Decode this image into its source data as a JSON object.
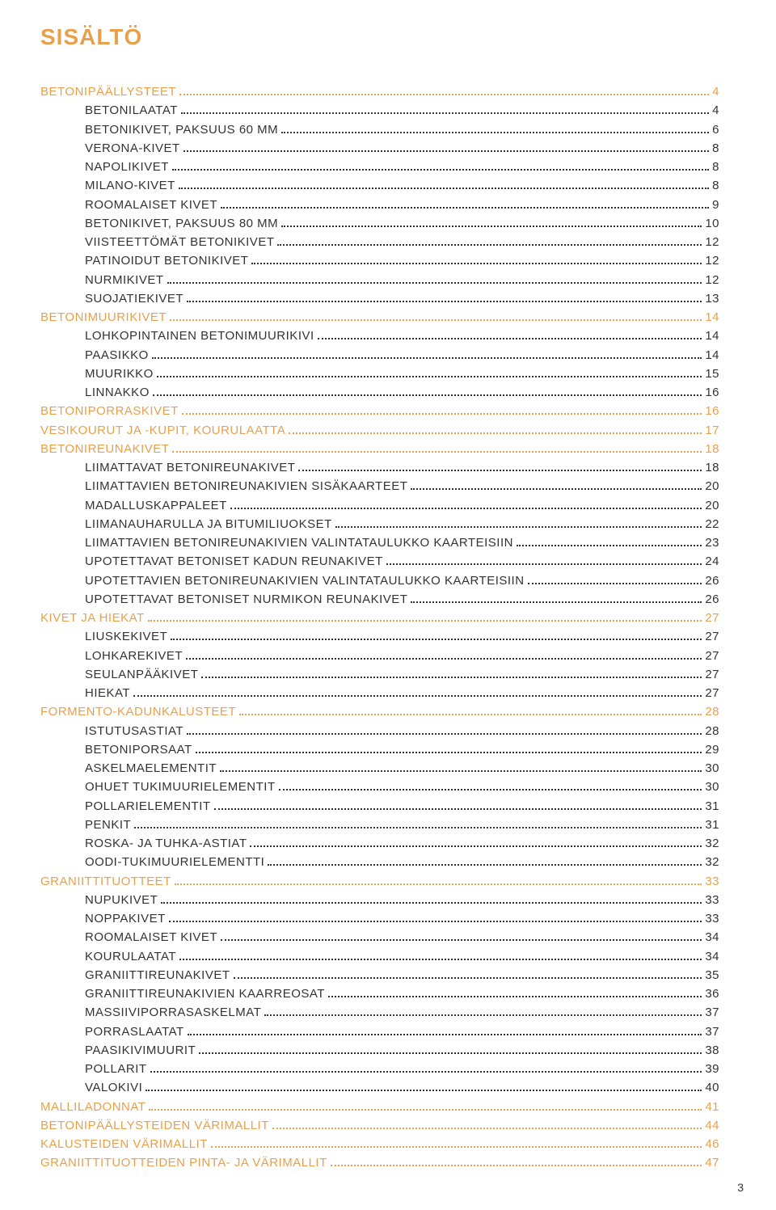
{
  "title": "SISÄLTÖ",
  "title_color": "#e8a04c",
  "colors": {
    "section": "#e8a04c",
    "item": "#333333"
  },
  "page_number": "3",
  "toc": [
    {
      "label": "BETONIPÄÄLLYSTEET",
      "page": "4",
      "type": "section",
      "indent": false
    },
    {
      "label": "BETONILAATAT",
      "page": "4",
      "type": "item",
      "indent": true
    },
    {
      "label": "BETONIKIVET, PAKSUUS 60 MM",
      "page": "6",
      "type": "item",
      "indent": true
    },
    {
      "label": "VERONA-KIVET",
      "page": "8",
      "type": "item",
      "indent": true
    },
    {
      "label": "NAPOLIKIVET",
      "page": "8",
      "type": "item",
      "indent": true
    },
    {
      "label": "MILANO-KIVET",
      "page": "8",
      "type": "item",
      "indent": true
    },
    {
      "label": "ROOMALAISET KIVET",
      "page": "9",
      "type": "item",
      "indent": true
    },
    {
      "label": "BETONIKIVET, PAKSUUS 80 MM",
      "page": "10",
      "type": "item",
      "indent": true
    },
    {
      "label": "VIISTEETTÖMÄT BETONIKIVET",
      "page": "12",
      "type": "item",
      "indent": true
    },
    {
      "label": "PATINOIDUT BETONIKIVET",
      "page": "12",
      "type": "item",
      "indent": true
    },
    {
      "label": "NURMIKIVET",
      "page": "12",
      "type": "item",
      "indent": true
    },
    {
      "label": "SUOJATIEKIVET",
      "page": "13",
      "type": "item",
      "indent": true
    },
    {
      "label": "BETONIMUURIKIVET",
      "page": "14",
      "type": "section",
      "indent": false
    },
    {
      "label": "LOHKOPINTAINEN BETONIMUURIKIVI",
      "page": "14",
      "type": "item",
      "indent": true
    },
    {
      "label": "PAASIKKO",
      "page": "14",
      "type": "item",
      "indent": true
    },
    {
      "label": "MUURIKKO",
      "page": "15",
      "type": "item",
      "indent": true
    },
    {
      "label": "LINNAKKO",
      "page": "16",
      "type": "item",
      "indent": true
    },
    {
      "label": "BETONIPORRASKIVET",
      "page": "16",
      "type": "section",
      "indent": false
    },
    {
      "label": "VESIKOURUT JA -KUPIT, KOURULAATTA",
      "page": "17",
      "type": "section",
      "indent": false
    },
    {
      "label": "BETONIREUNAKIVET",
      "page": "18",
      "type": "section",
      "indent": false
    },
    {
      "label": "LIIMATTAVAT BETONIREUNAKIVET",
      "page": "18",
      "type": "item",
      "indent": true
    },
    {
      "label": "LIIMATTAVIEN BETONIREUNAKIVIEN SISÄKAARTEET",
      "page": "20",
      "type": "item",
      "indent": true
    },
    {
      "label": "MADALLUSKAPPALEET",
      "page": "20",
      "type": "item",
      "indent": true
    },
    {
      "label": "LIIMANAUHARULLA JA BITUMILIUOKSET",
      "page": "22",
      "type": "item",
      "indent": true
    },
    {
      "label": "LIIMATTAVIEN BETONIREUNAKIVIEN VALINTATAULUKKO KAARTEISIIN",
      "page": "23",
      "type": "item",
      "indent": true
    },
    {
      "label": "UPOTETTAVAT BETONISET KADUN REUNAKIVET",
      "page": "24",
      "type": "item",
      "indent": true
    },
    {
      "label": "UPOTETTAVIEN BETONIREUNAKIVIEN VALINTATAULUKKO KAARTEISIIN",
      "page": "26",
      "type": "item",
      "indent": true
    },
    {
      "label": "UPOTETTAVAT BETONISET NURMIKON REUNAKIVET",
      "page": "26",
      "type": "item",
      "indent": true
    },
    {
      "label": "KIVET JA HIEKAT",
      "page": "27",
      "type": "section",
      "indent": false
    },
    {
      "label": "LIUSKEKIVET",
      "page": "27",
      "type": "item",
      "indent": true
    },
    {
      "label": "LOHKAREKIVET",
      "page": "27",
      "type": "item",
      "indent": true
    },
    {
      "label": "SEULANPÄÄKIVET",
      "page": "27",
      "type": "item",
      "indent": true
    },
    {
      "label": "HIEKAT",
      "page": "27",
      "type": "item",
      "indent": true
    },
    {
      "label": "FORMENTO-KADUNKALUSTEET",
      "page": "28",
      "type": "section",
      "indent": false
    },
    {
      "label": "ISTUTUSASTIAT",
      "page": "28",
      "type": "item",
      "indent": true
    },
    {
      "label": "BETONIPORSAAT",
      "page": "29",
      "type": "item",
      "indent": true
    },
    {
      "label": "ASKELMAELEMENTIT",
      "page": "30",
      "type": "item",
      "indent": true
    },
    {
      "label": "OHUET TUKIMUURIELEMENTIT",
      "page": "30",
      "type": "item",
      "indent": true
    },
    {
      "label": "POLLARIELEMENTIT",
      "page": "31",
      "type": "item",
      "indent": true
    },
    {
      "label": "PENKIT",
      "page": "31",
      "type": "item",
      "indent": true
    },
    {
      "label": "ROSKA- JA TUHKA-ASTIAT",
      "page": "32",
      "type": "item",
      "indent": true
    },
    {
      "label": "OODI-TUKIMUURIELEMENTTI",
      "page": "32",
      "type": "item",
      "indent": true
    },
    {
      "label": "GRANIITTITUOTTEET",
      "page": "33",
      "type": "section",
      "indent": false
    },
    {
      "label": "NUPUKIVET",
      "page": "33",
      "type": "item",
      "indent": true
    },
    {
      "label": "NOPPAKIVET",
      "page": "33",
      "type": "item",
      "indent": true
    },
    {
      "label": "ROOMALAISET KIVET",
      "page": "34",
      "type": "item",
      "indent": true
    },
    {
      "label": "KOURULAATAT",
      "page": "34",
      "type": "item",
      "indent": true
    },
    {
      "label": "GRANIITTIREUNAKIVET",
      "page": "35",
      "type": "item",
      "indent": true
    },
    {
      "label": "GRANIITTIREUNAKIVIEN KAARREOSAT",
      "page": "36",
      "type": "item",
      "indent": true
    },
    {
      "label": "MASSIIVIPORRASASKELMAT",
      "page": "37",
      "type": "item",
      "indent": true
    },
    {
      "label": "PORRASLAATAT",
      "page": "37",
      "type": "item",
      "indent": true
    },
    {
      "label": "PAASIKIVIMUURIT",
      "page": "38",
      "type": "item",
      "indent": true
    },
    {
      "label": "POLLARIT",
      "page": "39",
      "type": "item",
      "indent": true
    },
    {
      "label": "VALOKIVI",
      "page": "40",
      "type": "item",
      "indent": true
    },
    {
      "label": "MALLILADONNAT",
      "page": "41",
      "type": "section",
      "indent": false
    },
    {
      "label": "BETONIPÄÄLLYSTEIDEN VÄRIMALLIT",
      "page": "44",
      "type": "section",
      "indent": false
    },
    {
      "label": "KALUSTEIDEN VÄRIMALLIT",
      "page": "46",
      "type": "section",
      "indent": false
    },
    {
      "label": "GRANIITTITUOTTEIDEN PINTA- JA VÄRIMALLIT",
      "page": "47",
      "type": "section",
      "indent": false
    }
  ]
}
